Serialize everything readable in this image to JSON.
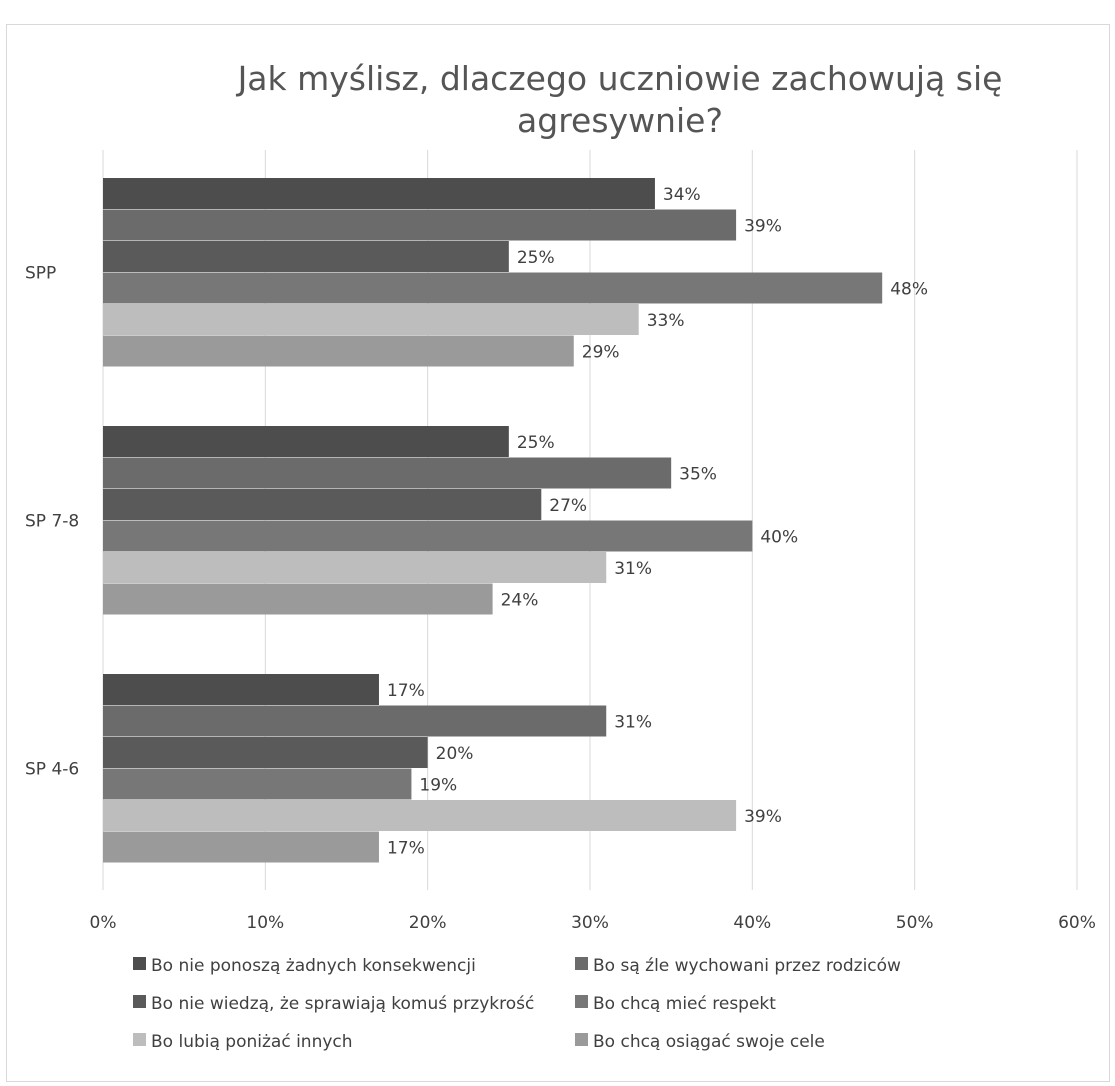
{
  "chart_data": {
    "type": "bar",
    "orientation": "horizontal",
    "title_lines": [
      "Jak myślisz, dlaczego uczniowie zachowują się",
      "agresywnie?"
    ],
    "categories": [
      "SPP",
      "SP 7-8",
      "SP 4-6"
    ],
    "series": [
      {
        "name": "Bo nie ponoszą żadnych konsekwencji",
        "values": [
          34,
          25,
          17
        ],
        "color": "#4d4d4d"
      },
      {
        "name": "Bo są źle wychowani przez rodziców",
        "values": [
          39,
          35,
          31
        ],
        "color": "#6b6b6b"
      },
      {
        "name": "Bo nie wiedzą, że sprawiają komuś przykrość",
        "values": [
          25,
          27,
          20
        ],
        "color": "#5a5a5a"
      },
      {
        "name": "Bo chcą mieć respekt",
        "values": [
          48,
          40,
          19
        ],
        "color": "#777777"
      },
      {
        "name": "Bo lubią poniżać innych",
        "values": [
          33,
          31,
          39
        ],
        "color": "#bdbdbd"
      },
      {
        "name": "Bo chcą osiągać swoje cele",
        "values": [
          29,
          24,
          17
        ],
        "color": "#9a9a9a"
      }
    ],
    "value_suffix": "%",
    "xlim": [
      0,
      60
    ],
    "x_ticks": [
      "0%",
      "10%",
      "20%",
      "30%",
      "40%",
      "50%",
      "60%"
    ],
    "grid": "vertical",
    "legend_position": "bottom"
  }
}
